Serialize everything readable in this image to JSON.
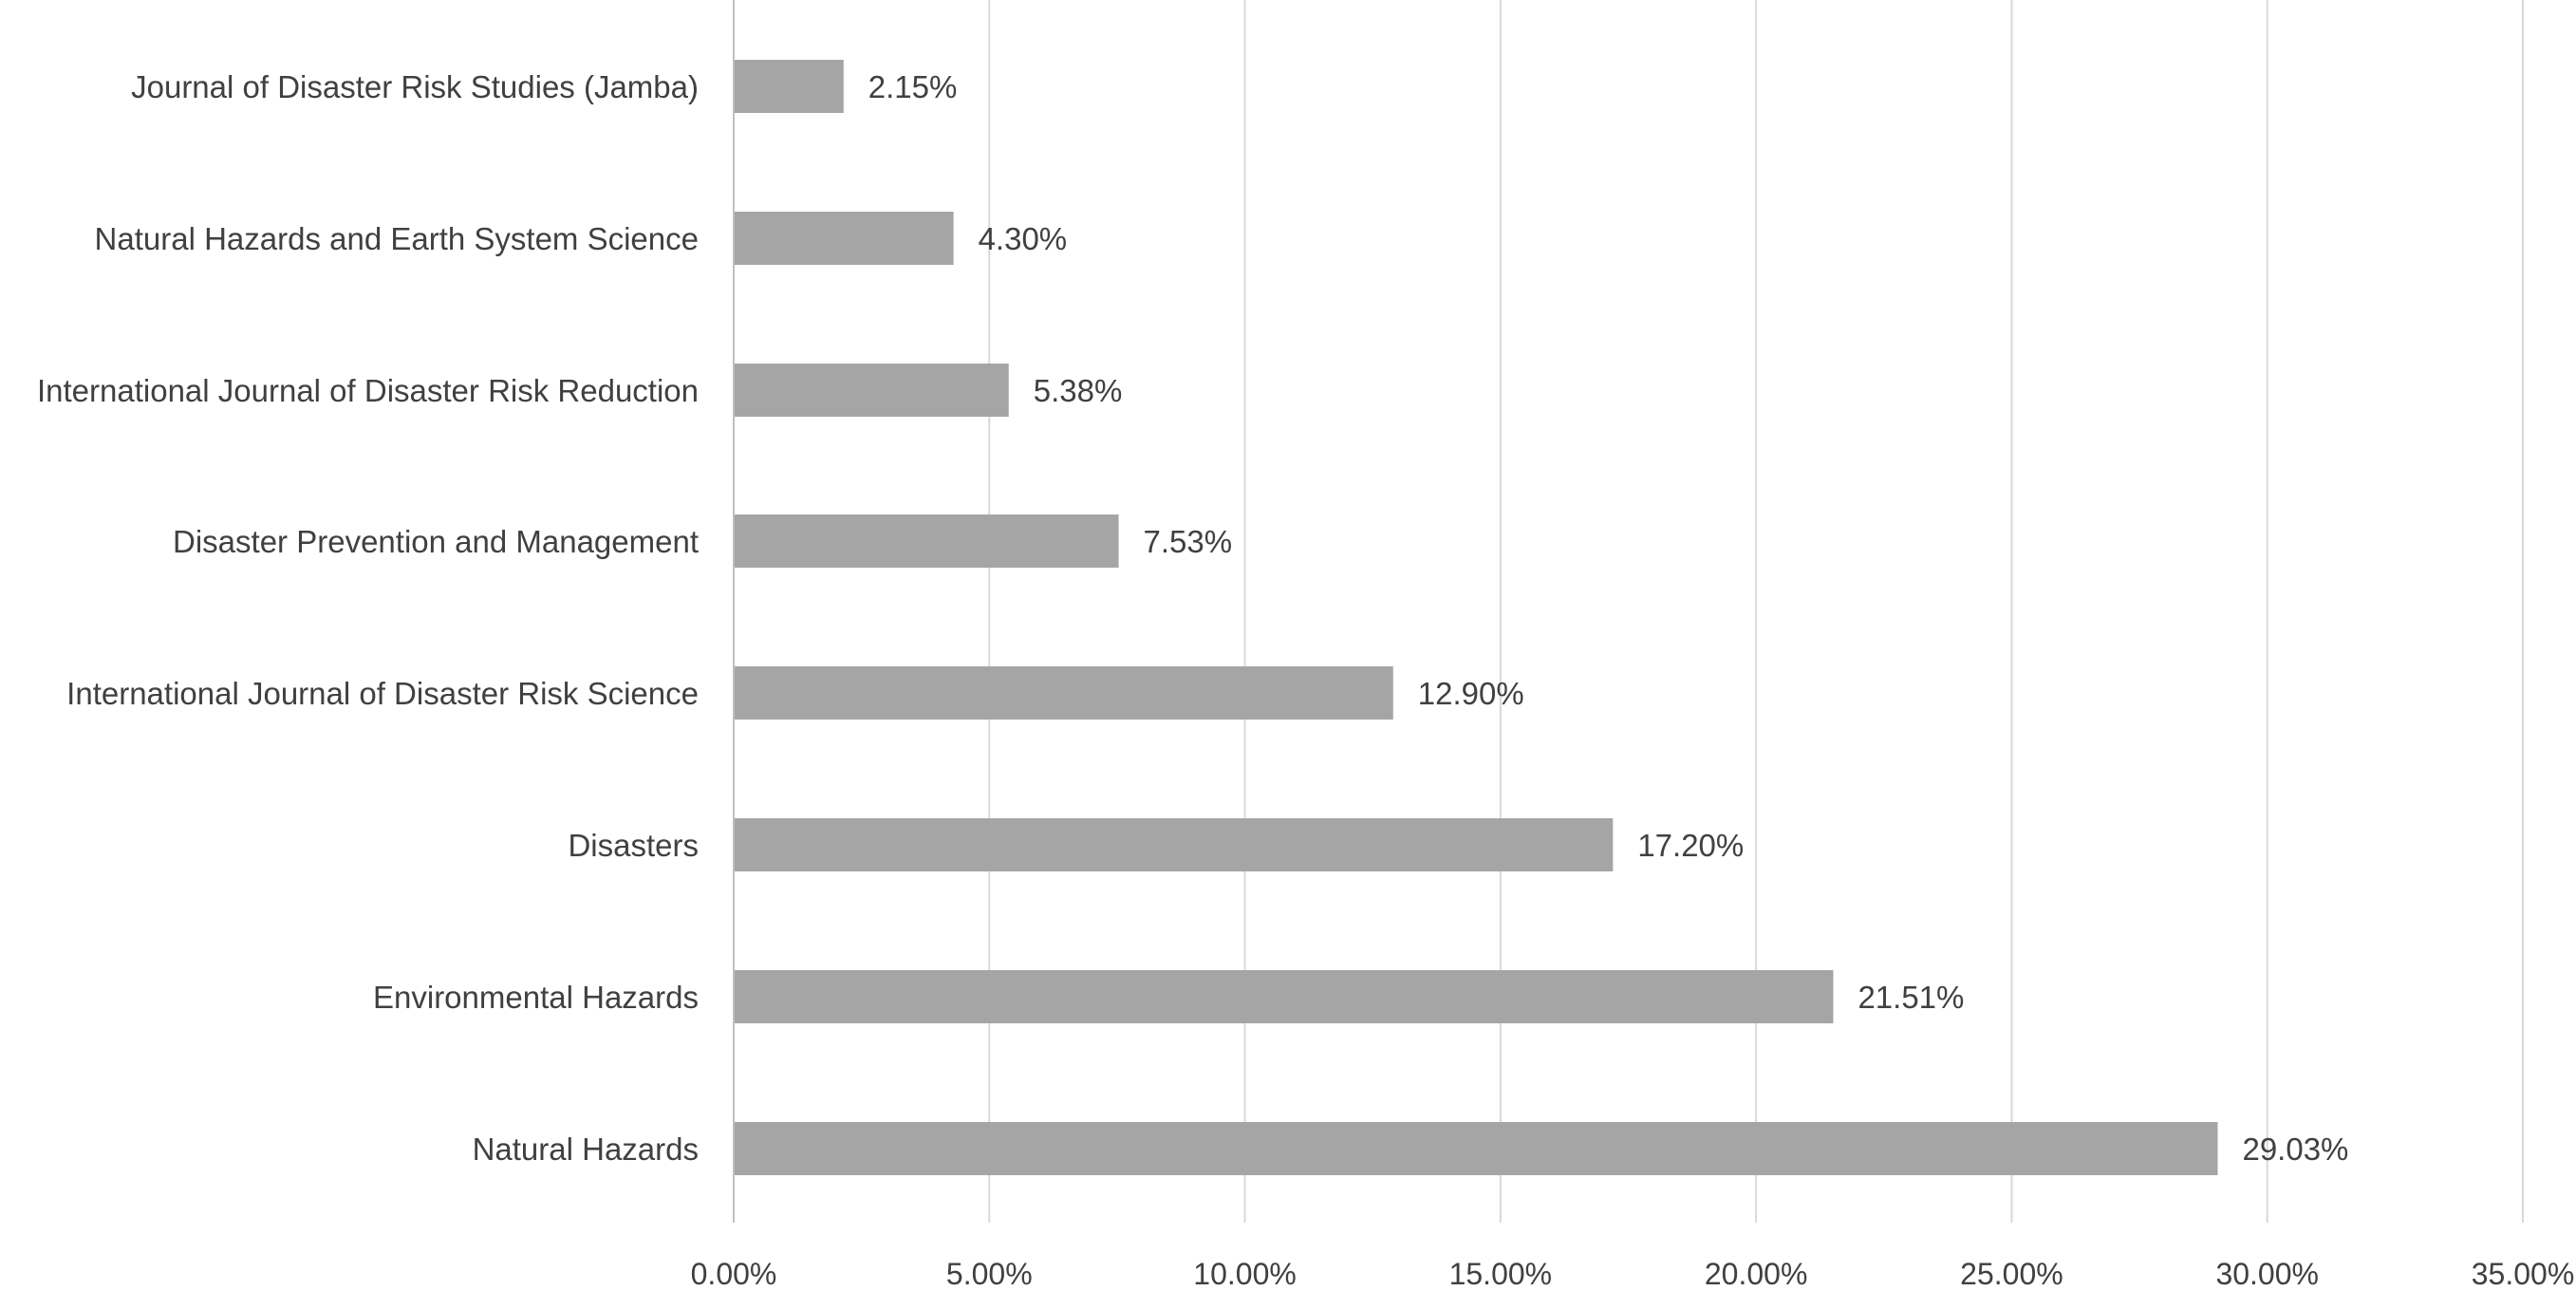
{
  "chart_data": {
    "type": "bar",
    "orientation": "horizontal",
    "title": "",
    "xlabel": "",
    "ylabel": "",
    "xlim": [
      0,
      35
    ],
    "x_ticks": [
      "0.00%",
      "5.00%",
      "10.00%",
      "15.00%",
      "20.00%",
      "25.00%",
      "30.00%",
      "35.00%"
    ],
    "grid": "vertical",
    "legend": "none",
    "bar_color": "#a5a5a5",
    "categories": [
      "Journal of Disaster Risk Studies (Jamba)",
      "Natural Hazards and Earth System Science",
      "International Journal of Disaster Risk Reduction",
      "Disaster Prevention and Management",
      "International Journal of Disaster Risk Science",
      "Disasters",
      "Environmental Hazards",
      "Natural Hazards"
    ],
    "values": [
      2.15,
      4.3,
      5.38,
      7.53,
      12.9,
      17.2,
      21.51,
      29.03
    ],
    "data_labels": [
      "2.15%",
      "4.30%",
      "5.38%",
      "7.53%",
      "12.90%",
      "17.20%",
      "21.51%",
      "29.03%"
    ]
  }
}
